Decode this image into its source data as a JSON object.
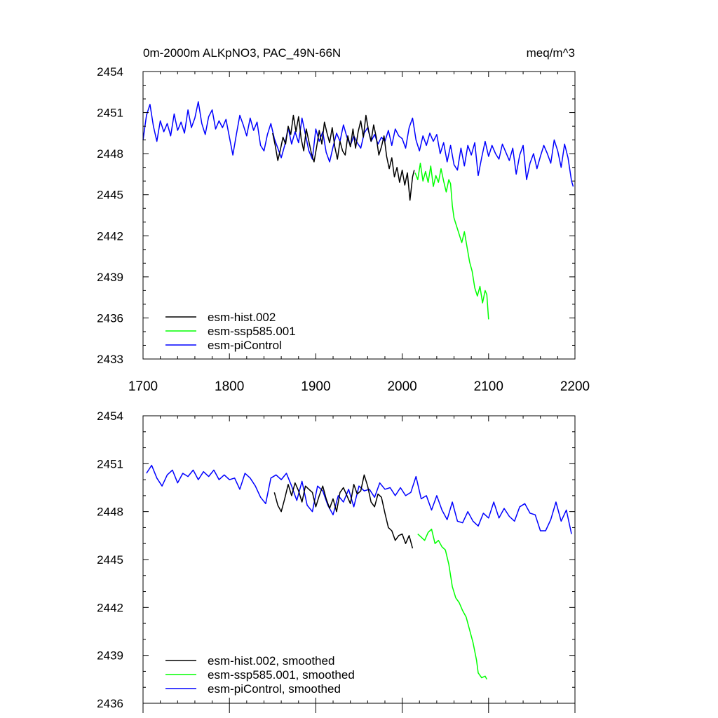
{
  "chart_data": [
    {
      "type": "line",
      "title": "0m-2000m ALKpNO3, PAC_49N-66N",
      "units": "meq/m^3",
      "xlim": [
        1700,
        2200
      ],
      "ylim": [
        2433,
        2454
      ],
      "x_ticks": [
        "1700",
        "1800",
        "1900",
        "2000",
        "2100",
        "2200"
      ],
      "y_ticks": [
        "2433",
        "2436",
        "2439",
        "2442",
        "2445",
        "2448",
        "2451",
        "2454"
      ],
      "series": [
        {
          "name": "esm-piControl",
          "color": "#0000ff",
          "x": [
            1700,
            1704,
            1708,
            1712,
            1716,
            1720,
            1724,
            1728,
            1732,
            1736,
            1740,
            1744,
            1748,
            1752,
            1756,
            1760,
            1764,
            1768,
            1772,
            1776,
            1780,
            1784,
            1788,
            1792,
            1796,
            1800,
            1804,
            1808,
            1812,
            1816,
            1820,
            1824,
            1828,
            1832,
            1836,
            1840,
            1844,
            1848,
            1852,
            1856,
            1860,
            1864,
            1868,
            1872,
            1876,
            1880,
            1884,
            1888,
            1892,
            1896,
            1900,
            1904,
            1908,
            1912,
            1916,
            1920,
            1924,
            1928,
            1932,
            1936,
            1940,
            1944,
            1948,
            1952,
            1956,
            1960,
            1964,
            1968,
            1972,
            1976,
            1980,
            1984,
            1988,
            1992,
            1996,
            2000,
            2004,
            2008,
            2012,
            2016,
            2020,
            2024,
            2028,
            2032,
            2036,
            2040,
            2044,
            2048,
            2052,
            2056,
            2060,
            2064,
            2068,
            2072,
            2076,
            2080,
            2084,
            2088,
            2092,
            2096,
            2100,
            2104,
            2108,
            2112,
            2116,
            2120,
            2124,
            2128,
            2132,
            2136,
            2140,
            2144,
            2148,
            2152,
            2156,
            2160,
            2164,
            2168,
            2172,
            2176,
            2180,
            2184,
            2188,
            2192,
            2196,
            2198
          ],
          "y": [
            2449.0,
            2450.8,
            2451.6,
            2450.0,
            2448.9,
            2450.4,
            2449.6,
            2450.2,
            2449.3,
            2450.9,
            2449.7,
            2450.3,
            2449.5,
            2451.2,
            2449.9,
            2450.6,
            2451.8,
            2450.2,
            2449.4,
            2450.7,
            2451.2,
            2449.8,
            2450.4,
            2449.9,
            2450.5,
            2449.2,
            2447.9,
            2449.4,
            2450.8,
            2450.1,
            2449.3,
            2450.6,
            2449.7,
            2450.3,
            2448.6,
            2448.2,
            2449.4,
            2450.2,
            2449.1,
            2448.4,
            2447.7,
            2448.6,
            2449.9,
            2448.7,
            2449.6,
            2448.8,
            2450.6,
            2449.4,
            2448.2,
            2447.6,
            2449.8,
            2448.9,
            2449.6,
            2448.1,
            2447.4,
            2448.5,
            2449.5,
            2448.9,
            2450.1,
            2449.2,
            2448.6,
            2449.3,
            2448.8,
            2448.4,
            2449.5,
            2449.9,
            2448.9,
            2449.4,
            2448.7,
            2449.2,
            2448.9,
            2449.7,
            2448.6,
            2449.8,
            2449.3,
            2449.1,
            2448.4,
            2449.9,
            2450.6,
            2449.0,
            2448.2,
            2449.3,
            2448.6,
            2449.5,
            2448.9,
            2449.4,
            2448.0,
            2448.8,
            2447.4,
            2448.6,
            2447.2,
            2446.8,
            2448.4,
            2447.1,
            2448.6,
            2447.9,
            2448.8,
            2446.4,
            2447.7,
            2448.9,
            2447.8,
            2448.6,
            2448.0,
            2447.6,
            2448.7,
            2448.1,
            2447.5,
            2448.4,
            2446.5,
            2447.9,
            2448.6,
            2446.1,
            2447.3,
            2448.0,
            2446.9,
            2447.8,
            2448.6,
            2448.0,
            2447.3,
            2449.0,
            2448.2,
            2447.0,
            2448.7,
            2447.7,
            2446.0,
            2445.6
          ]
        },
        {
          "name": "esm-hist.002",
          "color": "#000000",
          "x": [
            1850,
            1853,
            1856,
            1859,
            1862,
            1865,
            1868,
            1871,
            1874,
            1877,
            1880,
            1883,
            1886,
            1889,
            1892,
            1895,
            1898,
            1901,
            1904,
            1907,
            1910,
            1913,
            1916,
            1919,
            1922,
            1925,
            1928,
            1931,
            1934,
            1937,
            1940,
            1943,
            1946,
            1949,
            1952,
            1955,
            1958,
            1961,
            1964,
            1967,
            1970,
            1973,
            1976,
            1979,
            1982,
            1985,
            1988,
            1991,
            1994,
            1997,
            2000,
            2003,
            2006,
            2009,
            2012,
            2014
          ],
          "y": [
            2449.5,
            2448.6,
            2447.5,
            2448.3,
            2449.2,
            2448.7,
            2450.0,
            2449.4,
            2450.8,
            2449.6,
            2450.7,
            2449.1,
            2448.2,
            2449.8,
            2448.9,
            2448.0,
            2447.4,
            2448.5,
            2449.7,
            2448.7,
            2450.3,
            2449.5,
            2448.8,
            2449.9,
            2448.5,
            2447.6,
            2448.9,
            2448.2,
            2447.9,
            2449.3,
            2448.5,
            2449.8,
            2448.4,
            2449.6,
            2450.4,
            2449.2,
            2450.8,
            2449.7,
            2448.9,
            2450.1,
            2449.2,
            2447.9,
            2448.5,
            2449.3,
            2447.8,
            2446.9,
            2447.7,
            2446.3,
            2447.0,
            2445.9,
            2446.8,
            2445.7,
            2446.6,
            2444.6,
            2446.3,
            2446.8
          ]
        },
        {
          "name": "esm-ssp585.001",
          "color": "#00ff00",
          "x": [
            2015,
            2018,
            2021,
            2024,
            2027,
            2030,
            2033,
            2036,
            2039,
            2042,
            2045,
            2048,
            2051,
            2054,
            2056,
            2058,
            2060,
            2063,
            2066,
            2069,
            2072,
            2075,
            2078,
            2081,
            2084,
            2087,
            2090,
            2093,
            2096,
            2098,
            2100
          ],
          "y": [
            2446.6,
            2446.1,
            2447.3,
            2446.0,
            2446.7,
            2445.9,
            2447.1,
            2445.6,
            2446.4,
            2445.9,
            2446.9,
            2446.0,
            2445.2,
            2446.1,
            2445.8,
            2444.2,
            2443.3,
            2442.7,
            2442.1,
            2441.5,
            2442.3,
            2441.2,
            2440.1,
            2439.4,
            2438.2,
            2437.6,
            2438.3,
            2437.1,
            2438.0,
            2437.7,
            2435.9
          ]
        }
      ],
      "legend": [
        "esm-hist.002",
        "esm-ssp585.001",
        "esm-piControl"
      ],
      "legend_position": "bottom-left"
    },
    {
      "type": "line",
      "xlim": [
        1700,
        2200
      ],
      "ylim": [
        2436,
        2454
      ],
      "y_ticks": [
        "2436",
        "2439",
        "2442",
        "2445",
        "2448",
        "2451",
        "2454"
      ],
      "series": [
        {
          "name": "esm-piControl, smoothed",
          "color": "#0000ff",
          "x": [
            1704,
            1710,
            1716,
            1722,
            1728,
            1734,
            1740,
            1746,
            1752,
            1758,
            1764,
            1770,
            1776,
            1782,
            1788,
            1794,
            1800,
            1806,
            1812,
            1818,
            1824,
            1830,
            1836,
            1842,
            1848,
            1854,
            1860,
            1866,
            1872,
            1878,
            1884,
            1890,
            1896,
            1902,
            1908,
            1914,
            1920,
            1926,
            1932,
            1938,
            1944,
            1950,
            1956,
            1962,
            1968,
            1974,
            1980,
            1986,
            1992,
            1998,
            2004,
            2010,
            2016,
            2022,
            2028,
            2034,
            2040,
            2046,
            2052,
            2058,
            2064,
            2070,
            2076,
            2082,
            2088,
            2094,
            2100,
            2106,
            2112,
            2118,
            2124,
            2130,
            2136,
            2142,
            2148,
            2154,
            2160,
            2166,
            2172,
            2178,
            2184,
            2190,
            2196
          ],
          "y": [
            2450.4,
            2450.9,
            2450.1,
            2449.6,
            2450.3,
            2450.6,
            2449.8,
            2450.4,
            2450.2,
            2450.6,
            2450.0,
            2450.5,
            2450.2,
            2450.6,
            2450.0,
            2450.3,
            2450.0,
            2450.1,
            2449.4,
            2450.4,
            2450.1,
            2449.6,
            2448.9,
            2448.5,
            2450.1,
            2450.3,
            2450.0,
            2450.4,
            2449.6,
            2448.7,
            2449.9,
            2448.4,
            2448.0,
            2449.6,
            2449.3,
            2448.4,
            2447.8,
            2449.0,
            2448.6,
            2449.4,
            2448.3,
            2449.6,
            2449.3,
            2449.4,
            2448.9,
            2449.8,
            2449.4,
            2449.5,
            2449.0,
            2449.5,
            2449.0,
            2449.2,
            2450.2,
            2448.8,
            2449.0,
            2448.1,
            2449.0,
            2448.1,
            2447.5,
            2448.6,
            2447.4,
            2447.3,
            2448.0,
            2447.4,
            2447.1,
            2447.9,
            2447.6,
            2448.6,
            2447.6,
            2448.2,
            2447.7,
            2447.4,
            2448.3,
            2448.5,
            2447.9,
            2447.8,
            2446.8,
            2446.8,
            2447.5,
            2448.6,
            2447.4,
            2448.1,
            2446.6
          ]
        },
        {
          "name": "esm-hist.002, smoothed",
          "color": "#000000",
          "x": [
            1852,
            1856,
            1860,
            1864,
            1868,
            1872,
            1876,
            1880,
            1884,
            1888,
            1892,
            1896,
            1900,
            1904,
            1908,
            1912,
            1916,
            1920,
            1924,
            1928,
            1932,
            1936,
            1940,
            1944,
            1948,
            1952,
            1956,
            1960,
            1964,
            1968,
            1972,
            1976,
            1980,
            1984,
            1988,
            1992,
            1996,
            2000,
            2004,
            2008,
            2012
          ],
          "y": [
            2449.2,
            2448.4,
            2448.0,
            2448.8,
            2449.7,
            2449.0,
            2449.8,
            2449.3,
            2448.6,
            2449.6,
            2449.4,
            2449.2,
            2448.3,
            2449.0,
            2449.6,
            2448.8,
            2448.2,
            2448.8,
            2448.0,
            2449.2,
            2449.5,
            2449.0,
            2448.5,
            2449.7,
            2449.1,
            2449.3,
            2450.3,
            2449.6,
            2448.6,
            2448.3,
            2449.1,
            2448.9,
            2447.9,
            2447.0,
            2446.8,
            2446.2,
            2446.5,
            2446.6,
            2446.0,
            2446.5,
            2445.7
          ]
        },
        {
          "name": "esm-ssp585.001, smoothed",
          "color": "#00ff00",
          "x": [
            2018,
            2022,
            2026,
            2030,
            2034,
            2038,
            2042,
            2046,
            2050,
            2054,
            2058,
            2062,
            2066,
            2070,
            2074,
            2078,
            2082,
            2086,
            2088,
            2092,
            2096,
            2098
          ],
          "y": [
            2446.6,
            2446.4,
            2446.2,
            2446.7,
            2446.9,
            2446.0,
            2446.2,
            2445.8,
            2445.6,
            2444.7,
            2443.3,
            2442.6,
            2442.3,
            2441.8,
            2441.4,
            2440.6,
            2439.8,
            2438.7,
            2437.9,
            2437.6,
            2437.7,
            2437.5
          ]
        }
      ],
      "legend": [
        "esm-hist.002, smoothed",
        "esm-ssp585.001, smoothed",
        "esm-piControl, smoothed"
      ],
      "legend_position": "bottom-left"
    }
  ]
}
